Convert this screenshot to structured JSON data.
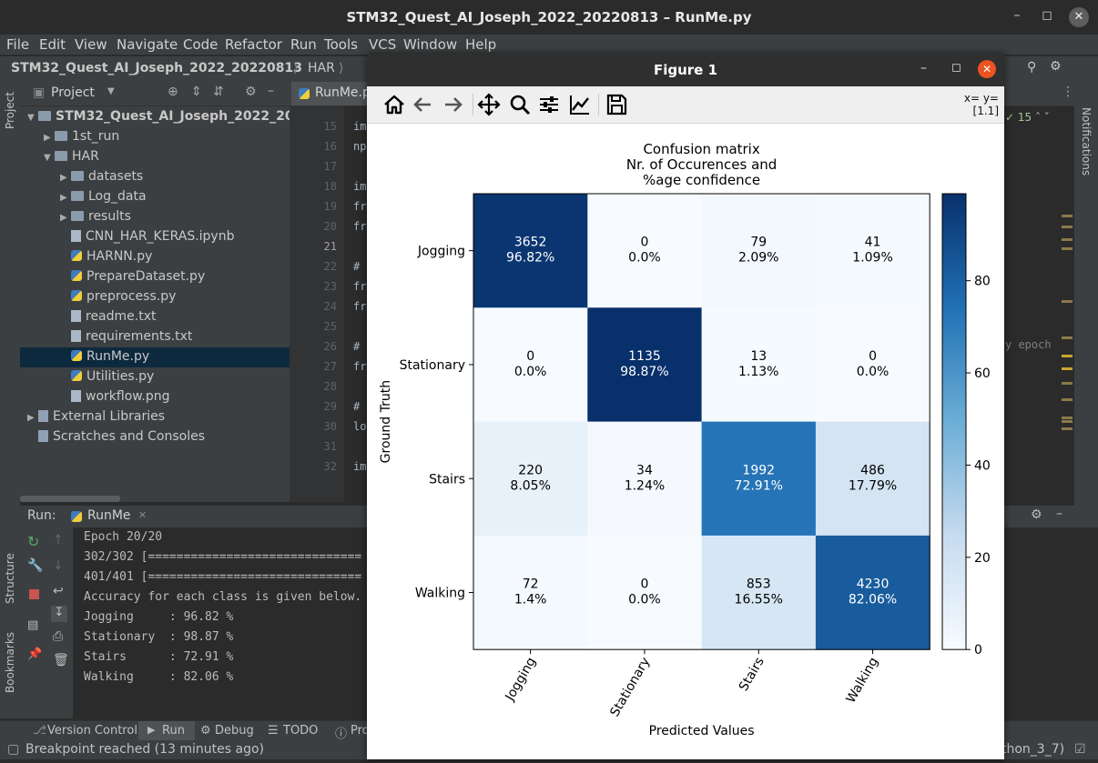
{
  "window": {
    "title": "STM32_Quest_AI_Joseph_2022_20220813 – RunMe.py"
  },
  "menu": [
    "File",
    "Edit",
    "View",
    "Navigate",
    "Code",
    "Refactor",
    "Run",
    "Tools",
    "VCS",
    "Window",
    "Help"
  ],
  "breadcrumb": {
    "project": "STM32_Quest_AI_Joseph_2022_20220813",
    "folder": "HAR"
  },
  "project_panel": {
    "title": "Project",
    "root": "STM32_Quest_AI_Joseph_2022_20",
    "items": [
      {
        "label": "1st_run",
        "type": "folder",
        "level": 1
      },
      {
        "label": "HAR",
        "type": "folder",
        "level": 1
      },
      {
        "label": "datasets",
        "type": "folder",
        "level": 2
      },
      {
        "label": "Log_data",
        "type": "folder",
        "level": 2
      },
      {
        "label": "results",
        "type": "folder",
        "level": 2
      },
      {
        "label": "CNN_HAR_KERAS.ipynb",
        "type": "file",
        "level": 2
      },
      {
        "label": "HARNN.py",
        "type": "py",
        "level": 2
      },
      {
        "label": "PrepareDataset.py",
        "type": "py",
        "level": 2
      },
      {
        "label": "preprocess.py",
        "type": "py",
        "level": 2
      },
      {
        "label": "readme.txt",
        "type": "file",
        "level": 2
      },
      {
        "label": "requirements.txt",
        "type": "file",
        "level": 2
      },
      {
        "label": "RunMe.py",
        "type": "py",
        "level": 2,
        "selected": true
      },
      {
        "label": "Utilities.py",
        "type": "py",
        "level": 2
      },
      {
        "label": "workflow.png",
        "type": "file",
        "level": 2
      },
      {
        "label": "External Libraries",
        "type": "lib",
        "level": 0
      },
      {
        "label": "Scratches and Consoles",
        "type": "lib",
        "level": 0
      }
    ]
  },
  "editor": {
    "tab": "RunMe.py",
    "line_numbers": [
      "15",
      "16",
      "17",
      "18",
      "19",
      "20",
      "21",
      "22",
      "23",
      "24",
      "25",
      "26",
      "27",
      "28",
      "29",
      "30",
      "31",
      "32"
    ],
    "fragments": {
      "15": "im",
      "16": "np",
      "18": "im",
      "19": "fr",
      "20": "fr",
      "22": "#",
      "23": "fr",
      "24": "fr",
      "26": "#",
      "27": "fr",
      "29": "#",
      "30": "lo",
      "32": "im"
    },
    "right_fragment": "y epoch",
    "inspection_count": "15"
  },
  "run_panel": {
    "label": "Run:",
    "tab": "RunMe",
    "lines": [
      "Epoch 20/20",
      "302/302 [==============================",
      "401/401 [==============================",
      "Accuracy for each class is given below.",
      "Jogging     : 96.82 %",
      "Stationary  : 98.87 %",
      "Stairs      : 72.91 %",
      "Walking     : 82.06 %"
    ]
  },
  "bottom_tabs": [
    "Version Control",
    "Run",
    "Debug",
    "TODO",
    "Pro"
  ],
  "status": {
    "message": "Breakpoint reached (13 minutes ago)",
    "interpreter": "thon_3_7)"
  },
  "side_labels": {
    "project": "Project",
    "structure": "Structure",
    "bookmarks": "Bookmarks",
    "notifications": "Notifications"
  },
  "figure": {
    "title": "Figure 1",
    "coord_readout": [
      "x= y=",
      "[1.1]"
    ]
  },
  "chart_data": {
    "type": "heatmap",
    "title_lines": [
      "Confusion matrix",
      "Nr. of Occurences and",
      "%age confidence"
    ],
    "xlabel": "Predicted Values",
    "ylabel": "Ground Truth",
    "x_categories": [
      "Jogging",
      "Stationary",
      "Stairs",
      "Walking"
    ],
    "y_categories": [
      "Jogging",
      "Stationary",
      "Stairs",
      "Walking"
    ],
    "counts": [
      [
        3652,
        0,
        79,
        41
      ],
      [
        0,
        1135,
        13,
        0
      ],
      [
        220,
        34,
        1992,
        486
      ],
      [
        72,
        0,
        853,
        4230
      ]
    ],
    "percent_labels": [
      [
        "96.82%",
        "0.0%",
        "2.09%",
        "1.09%"
      ],
      [
        "0.0%",
        "98.87%",
        "1.13%",
        "0.0%"
      ],
      [
        "8.05%",
        "1.24%",
        "72.91%",
        "17.79%"
      ],
      [
        "1.4%",
        "0.0%",
        "16.55%",
        "82.06%"
      ]
    ],
    "percent_values": [
      [
        96.82,
        0.0,
        2.09,
        1.09
      ],
      [
        0.0,
        98.87,
        1.13,
        0.0
      ],
      [
        8.05,
        1.24,
        72.91,
        17.79
      ],
      [
        1.4,
        0.0,
        16.55,
        82.06
      ]
    ],
    "colorbar": {
      "min": 0,
      "max": 98.87,
      "ticks": [
        0,
        20,
        40,
        60,
        80
      ],
      "colormap": "Blues"
    }
  }
}
